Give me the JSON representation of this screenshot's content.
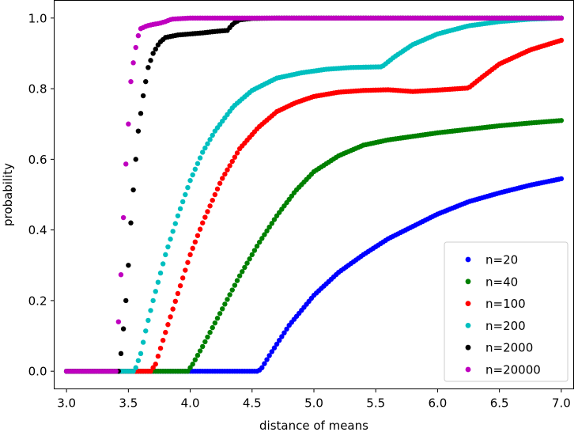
{
  "chart_data": {
    "type": "scatter",
    "title": "",
    "xlabel": "distance of means",
    "ylabel": "probability",
    "xlim": [
      2.9,
      7.1
    ],
    "ylim": [
      -0.05,
      1.05
    ],
    "xticks": [
      3.0,
      3.5,
      4.0,
      4.5,
      5.0,
      5.5,
      6.0,
      6.5,
      7.0
    ],
    "xtick_labels": [
      "3.0",
      "3.5",
      "4.0",
      "4.5",
      "5.0",
      "5.5",
      "6.0",
      "6.5",
      "7.0"
    ],
    "yticks": [
      0.0,
      0.2,
      0.4,
      0.6,
      0.8,
      1.0
    ],
    "ytick_labels": [
      "0.0",
      "0.2",
      "0.4",
      "0.6",
      "0.8",
      "1.0"
    ],
    "grid": false,
    "legend_position": "lower-right",
    "series": [
      {
        "name": "n=20",
        "color": "#0000ff",
        "x": [
          3.0,
          4.55,
          4.58,
          4.65,
          4.8,
          5.0,
          5.2,
          5.4,
          5.6,
          5.8,
          6.0,
          6.25,
          6.5,
          6.75,
          7.0
        ],
        "y": [
          0.0,
          0.0,
          0.01,
          0.05,
          0.13,
          0.215,
          0.28,
          0.33,
          0.375,
          0.41,
          0.445,
          0.48,
          0.505,
          0.527,
          0.545
        ]
      },
      {
        "name": "n=40",
        "color": "#008000",
        "x": [
          3.0,
          3.98,
          4.02,
          4.1,
          4.25,
          4.4,
          4.55,
          4.7,
          4.85,
          5.0,
          5.2,
          5.4,
          5.6,
          5.8,
          6.0,
          6.25,
          6.5,
          6.75,
          7.0
        ],
        "y": [
          0.0,
          0.0,
          0.02,
          0.07,
          0.17,
          0.27,
          0.36,
          0.44,
          0.51,
          0.565,
          0.61,
          0.64,
          0.655,
          0.665,
          0.675,
          0.685,
          0.695,
          0.703,
          0.71
        ]
      },
      {
        "name": "n=100",
        "color": "#ff0000",
        "x": [
          3.0,
          3.68,
          3.72,
          3.8,
          3.9,
          4.0,
          4.1,
          4.25,
          4.4,
          4.55,
          4.7,
          4.85,
          5.0,
          5.2,
          5.4,
          5.6,
          5.8,
          6.0,
          6.25,
          6.35,
          6.5,
          6.75,
          7.0
        ],
        "y": [
          0.0,
          0.0,
          0.02,
          0.11,
          0.22,
          0.33,
          0.42,
          0.54,
          0.63,
          0.69,
          0.735,
          0.76,
          0.778,
          0.79,
          0.795,
          0.797,
          0.792,
          0.796,
          0.802,
          0.83,
          0.87,
          0.91,
          0.937
        ]
      },
      {
        "name": "n=200",
        "color": "#00bfbf",
        "x": [
          3.0,
          3.55,
          3.6,
          3.65,
          3.7,
          3.8,
          3.9,
          4.0,
          4.1,
          4.2,
          4.35,
          4.5,
          4.7,
          4.9,
          5.1,
          5.3,
          5.55,
          5.65,
          5.8,
          6.0,
          6.25,
          6.5,
          6.75,
          7.0
        ],
        "y": [
          0.0,
          0.0,
          0.05,
          0.13,
          0.2,
          0.33,
          0.44,
          0.54,
          0.62,
          0.68,
          0.75,
          0.795,
          0.83,
          0.845,
          0.855,
          0.86,
          0.862,
          0.89,
          0.925,
          0.955,
          0.978,
          0.99,
          0.997,
          1.0
        ]
      },
      {
        "name": "n=2000",
        "color": "#000000",
        "x": [
          3.0,
          3.42,
          3.44,
          3.46,
          3.48,
          3.5,
          3.52,
          3.55,
          3.58,
          3.62,
          3.66,
          3.7,
          3.75,
          3.8,
          3.9,
          4.0,
          4.1,
          4.2,
          4.3,
          4.35,
          4.4,
          4.5,
          4.7,
          5.0,
          5.5,
          6.0,
          6.5,
          7.0
        ],
        "y": [
          0.0,
          0.0,
          0.05,
          0.12,
          0.2,
          0.3,
          0.42,
          0.56,
          0.68,
          0.78,
          0.86,
          0.9,
          0.93,
          0.945,
          0.952,
          0.955,
          0.958,
          0.962,
          0.965,
          0.985,
          0.995,
          0.999,
          1.0,
          1.0,
          1.0,
          1.0,
          1.0,
          1.0
        ]
      },
      {
        "name": "n=20000",
        "color": "#bf00bf",
        "x": [
          3.0,
          3.2,
          3.4,
          3.42,
          3.45,
          3.47,
          3.5,
          3.52,
          3.55,
          3.58,
          3.6,
          3.65,
          3.7,
          3.75,
          3.8,
          3.85,
          4.0,
          4.5,
          5.0,
          5.5,
          6.0,
          6.5,
          7.0
        ],
        "y": [
          0.0,
          0.0,
          0.0,
          0.14,
          0.34,
          0.53,
          0.7,
          0.82,
          0.9,
          0.95,
          0.97,
          0.978,
          0.982,
          0.985,
          0.99,
          0.997,
          1.0,
          1.0,
          1.0,
          1.0,
          1.0,
          1.0,
          1.0
        ]
      }
    ]
  }
}
